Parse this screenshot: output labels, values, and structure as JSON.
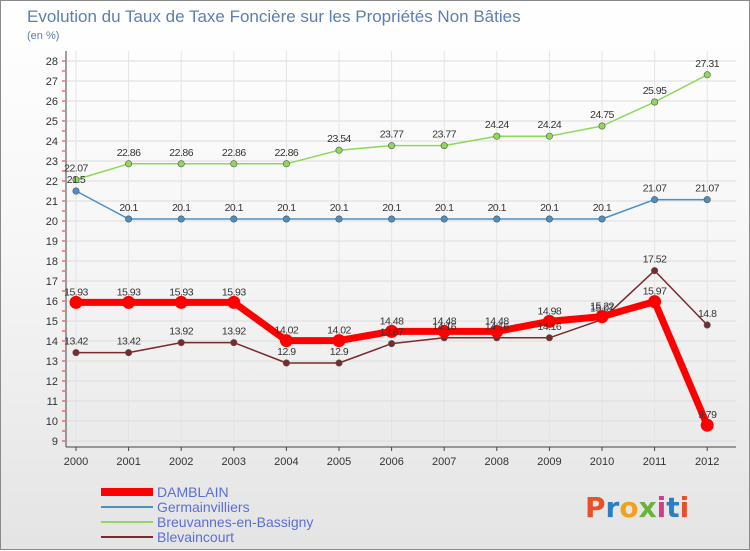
{
  "header": {
    "title": "Evolution du Taux de Taxe Foncière sur les Propriétés Non Bâties",
    "unit": "(en %)"
  },
  "logo": {
    "text": "Proxiti",
    "colors": [
      "#e8502a",
      "#2b7fc2",
      "#f0a21a",
      "#6bb33a",
      "#d23c8a",
      "#2b7fc2",
      "#e8502a"
    ]
  },
  "chart_data": {
    "type": "line",
    "title": "Evolution du Taux de Taxe Foncière sur les Propriétés Non Bâties",
    "ylabel": "(en %)",
    "xlabel": "",
    "x": [
      "2000",
      "2001",
      "2002",
      "2003",
      "2004",
      "2005",
      "2006",
      "2007",
      "2008",
      "2009",
      "2010",
      "2011",
      "2012"
    ],
    "ylim": [
      9,
      28
    ],
    "yticks": [
      "9",
      "10",
      "11",
      "12",
      "13",
      "14",
      "15",
      "16",
      "17",
      "18",
      "19",
      "20",
      "21",
      "22",
      "23",
      "24",
      "25",
      "26",
      "27",
      "28"
    ],
    "legend_position": "bottom-left",
    "grid": true,
    "series": [
      {
        "name": "DAMBLAIN",
        "color": "#ff0000",
        "values": [
          15.93,
          15.93,
          15.93,
          15.93,
          14.02,
          14.02,
          14.48,
          14.48,
          14.48,
          14.98,
          15.22,
          15.97,
          9.79
        ],
        "labels": [
          "15.93",
          "15.93",
          "15.93",
          "15.93",
          "14.02",
          "14.02",
          "14.48",
          "14.48",
          "14.48",
          "14.98",
          "15.22",
          "15.97",
          "9.79"
        ]
      },
      {
        "name": "Germainvilliers",
        "color": "#4a90c8",
        "values": [
          21.5,
          20.1,
          20.1,
          20.1,
          20.1,
          20.1,
          20.1,
          20.1,
          20.1,
          20.1,
          20.1,
          21.07,
          21.07
        ],
        "labels": [
          "21.5",
          "20.1",
          "20.1",
          "20.1",
          "20.1",
          "20.1",
          "20.1",
          "20.1",
          "20.1",
          "20.1",
          "20.1",
          "21.07",
          "21.07"
        ]
      },
      {
        "name": "Breuvannes-en-Bassigny",
        "color": "#8ed85a",
        "values": [
          22.07,
          22.86,
          22.86,
          22.86,
          22.86,
          23.54,
          23.77,
          23.77,
          24.24,
          24.24,
          24.75,
          25.95,
          27.31
        ],
        "labels": [
          "22.07",
          "22.86",
          "22.86",
          "22.86",
          "22.86",
          "23.54",
          "23.77",
          "23.77",
          "24.24",
          "24.24",
          "24.75",
          "25.95",
          "27.31"
        ]
      },
      {
        "name": "Blevaincourt",
        "color": "#7a2a2a",
        "values": [
          13.42,
          13.42,
          13.92,
          13.92,
          12.9,
          12.9,
          13.87,
          14.16,
          14.16,
          14.16,
          15.07,
          17.52,
          14.8
        ],
        "labels": [
          "13.42",
          "13.42",
          "13.92",
          "13.92",
          "12.9",
          "12.9",
          "13.87",
          "14.16",
          "14.16",
          "14.16",
          "15.07",
          "17.52",
          "14.8"
        ]
      }
    ]
  }
}
